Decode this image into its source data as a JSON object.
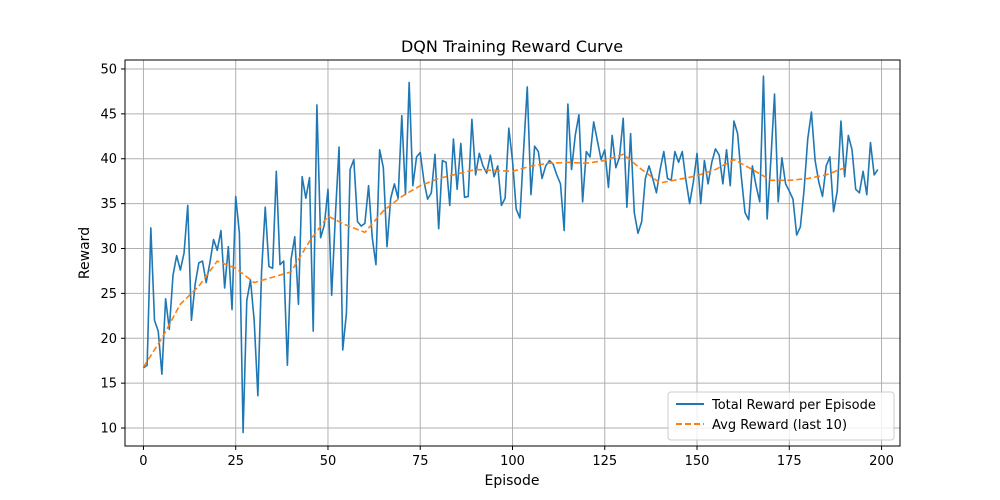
{
  "chart_data": {
    "type": "line",
    "title": "DQN Training Reward Curve",
    "xlabel": "Episode",
    "ylabel": "Reward",
    "xlim": [
      -5,
      205
    ],
    "ylim": [
      8,
      51
    ],
    "xticks": [
      0,
      25,
      50,
      75,
      100,
      125,
      150,
      175,
      200
    ],
    "yticks": [
      10,
      15,
      20,
      25,
      30,
      35,
      40,
      45,
      50
    ],
    "grid": true,
    "legend_position": "bottom-right",
    "series": [
      {
        "name": "Total Reward per Episode",
        "color": "#1f77b4",
        "style": "solid",
        "x_start": 0,
        "values": [
          16.7,
          17.0,
          32.3,
          22.0,
          20.8,
          16.0,
          24.4,
          21.0,
          27.0,
          29.2,
          27.6,
          29.5,
          34.8,
          22.0,
          26.0,
          28.4,
          28.6,
          26.2,
          28.4,
          31.0,
          29.8,
          32.0,
          25.6,
          30.2,
          23.2,
          35.8,
          31.7,
          9.5,
          24.2,
          26.5,
          22.0,
          13.6,
          27.4,
          34.6,
          28.0,
          27.8,
          38.6,
          28.2,
          28.6,
          17.0,
          28.8,
          31.3,
          23.8,
          38.0,
          35.6,
          37.9,
          20.8,
          46.0,
          31.2,
          32.6,
          36.6,
          24.8,
          33.6,
          41.3,
          18.7,
          22.8,
          38.8,
          39.9,
          33.0,
          32.5,
          32.8,
          37.0,
          31.2,
          28.2,
          41.0,
          39.0,
          30.2,
          35.6,
          37.2,
          35.6,
          44.8,
          36.0,
          48.5,
          37.0,
          40.2,
          40.7,
          37.5,
          35.5,
          36.2,
          40.5,
          32.2,
          39.8,
          39.6,
          34.8,
          42.2,
          36.6,
          41.7,
          35.7,
          35.8,
          44.4,
          38.2,
          40.6,
          39.2,
          38.4,
          40.4,
          38.0,
          39.2,
          34.8,
          35.6,
          43.4,
          39.8,
          34.4,
          33.4,
          40.9,
          48.0,
          36.0,
          41.4,
          40.8,
          37.8,
          39.2,
          39.8,
          39.4,
          38.2,
          37.2,
          32.0,
          46.1,
          38.8,
          42.6,
          44.9,
          35.2,
          40.8,
          40.2,
          44.1,
          42.0,
          39.9,
          41.0,
          36.8,
          42.6,
          39.0,
          40.2,
          44.5,
          34.6,
          42.8,
          34.0,
          31.7,
          33.0,
          37.8,
          39.2,
          37.8,
          36.2,
          38.8,
          40.8,
          37.8,
          37.6,
          40.8,
          39.6,
          40.8,
          37.6,
          35.0,
          37.4,
          40.6,
          35.0,
          39.8,
          37.2,
          39.6,
          41.1,
          40.4,
          37.2,
          41.0,
          37.0,
          44.2,
          42.8,
          38.0,
          34.0,
          33.2,
          39.2,
          37.0,
          35.2,
          49.2,
          33.3,
          39.8,
          47.2,
          35.2,
          40.1,
          37.2,
          36.4,
          35.5,
          31.5,
          32.4,
          36.5,
          42.2,
          45.2,
          39.8,
          37.4,
          35.8,
          39.2,
          40.2,
          34.1,
          36.4,
          44.2,
          38.0,
          42.6,
          41.0,
          36.6,
          36.2,
          38.6,
          36.0,
          41.8,
          38.2,
          38.8
        ]
      },
      {
        "name": "Avg Reward (last 10)",
        "color": "#ff7f0e",
        "style": "dashed",
        "points": [
          [
            0,
            16.8
          ],
          [
            5,
            20.0
          ],
          [
            10,
            23.8
          ],
          [
            15,
            25.8
          ],
          [
            20,
            28.6
          ],
          [
            25,
            27.8
          ],
          [
            30,
            26.2
          ],
          [
            35,
            26.8
          ],
          [
            40,
            27.4
          ],
          [
            45,
            30.8
          ],
          [
            50,
            33.6
          ],
          [
            55,
            32.6
          ],
          [
            60,
            31.8
          ],
          [
            65,
            34.2
          ],
          [
            70,
            35.8
          ],
          [
            75,
            37.0
          ],
          [
            80,
            37.8
          ],
          [
            85,
            38.3
          ],
          [
            90,
            38.8
          ],
          [
            95,
            38.7
          ],
          [
            100,
            38.6
          ],
          [
            105,
            39.2
          ],
          [
            110,
            39.5
          ],
          [
            115,
            39.6
          ],
          [
            120,
            39.5
          ],
          [
            125,
            39.8
          ],
          [
            130,
            40.5
          ],
          [
            135,
            38.8
          ],
          [
            140,
            37.3
          ],
          [
            145,
            37.7
          ],
          [
            150,
            38.1
          ],
          [
            155,
            38.8
          ],
          [
            160,
            39.9
          ],
          [
            165,
            38.8
          ],
          [
            170,
            37.6
          ],
          [
            175,
            37.6
          ],
          [
            180,
            37.8
          ],
          [
            185,
            38.2
          ],
          [
            190,
            39.0
          ]
        ]
      }
    ]
  }
}
